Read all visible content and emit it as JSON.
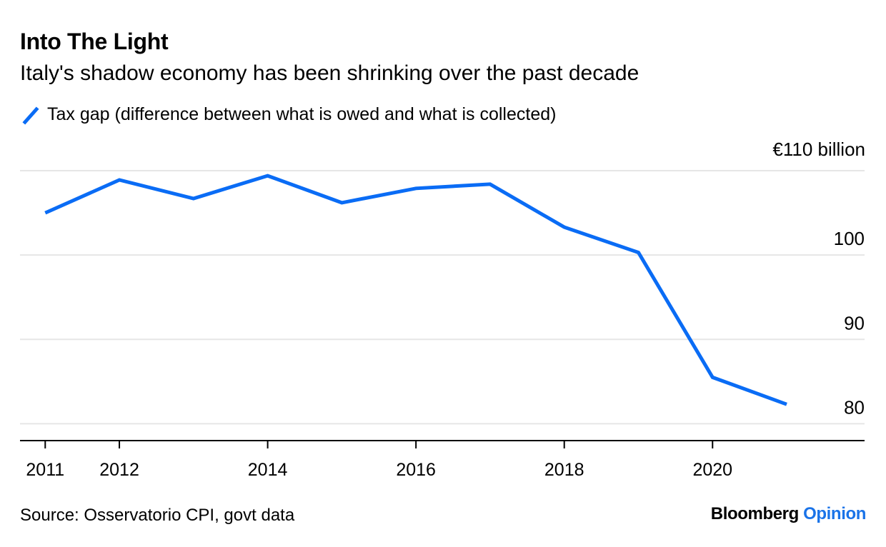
{
  "header": {
    "title": "Into The Light",
    "subtitle": "Italy's shadow economy has been shrinking over the past decade"
  },
  "legend": {
    "label": "Tax gap (difference between what is owed and what is collected)"
  },
  "unit_label": "€110 billion",
  "footer": {
    "source": "Source: Osservatorio CPI, govt data",
    "brand_name": "Bloomberg",
    "brand_section": "Opinion"
  },
  "colors": {
    "line": "#0a6cf5",
    "grid": "#e6e6e6",
    "axis": "#000000",
    "brand_accent": "#1a73e8"
  },
  "chart_data": {
    "type": "line",
    "x": [
      2011,
      2012,
      2013,
      2014,
      2015,
      2016,
      2017,
      2018,
      2019,
      2020,
      2021
    ],
    "series": [
      {
        "name": "Tax gap (difference between what is owed and what is collected)",
        "values": [
          105.0,
          108.9,
          106.7,
          109.4,
          106.2,
          107.9,
          108.4,
          103.3,
          100.3,
          85.5,
          82.3
        ]
      }
    ],
    "xlim": [
      2010.66,
      2022.05
    ],
    "ylim": [
      78,
      110
    ],
    "y_ticks": [
      80,
      90,
      100,
      110
    ],
    "y_tick_labels": [
      "80",
      "90",
      "100",
      "€110 billion"
    ],
    "x_ticks": [
      2011,
      2012,
      2014,
      2016,
      2018,
      2020
    ],
    "x_tick_labels": [
      "2011",
      "2012",
      "2014",
      "2016",
      "2018",
      "2020"
    ],
    "grid": true,
    "y_axis_side": "right",
    "legend_position": "top-left"
  }
}
